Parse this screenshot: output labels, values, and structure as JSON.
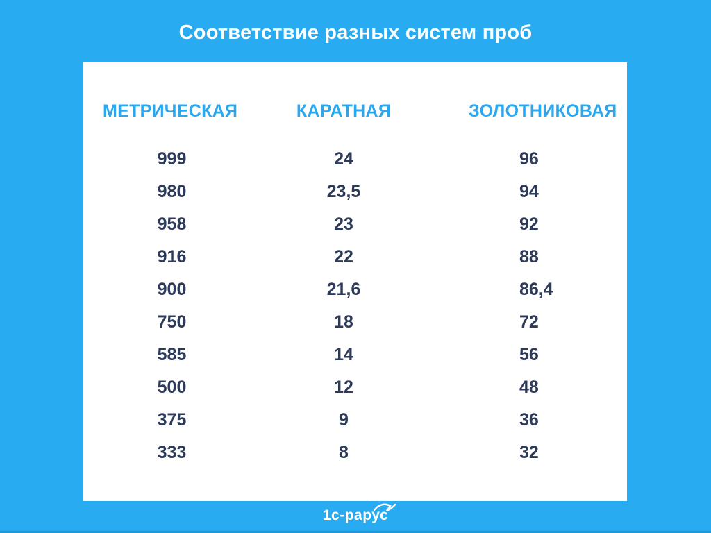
{
  "page": {
    "title": "Соответствие разных систем проб",
    "background_color": "#29ABF1",
    "card_color": "#FFFFFF",
    "title_color": "#FFFFFF",
    "header_text_color": "#2BA7EF",
    "value_text_color": "#2D3A59"
  },
  "chart_data": {
    "type": "table",
    "title": "Соответствие разных систем проб",
    "columns": [
      "МЕТРИЧЕСКАЯ",
      "КАРАТНАЯ",
      "ЗОЛОТНИКОВАЯ"
    ],
    "rows": [
      [
        "999",
        "24",
        "96"
      ],
      [
        "980",
        "23,5",
        "94"
      ],
      [
        "958",
        "23",
        "92"
      ],
      [
        "916",
        "22",
        "88"
      ],
      [
        "900",
        "21,6",
        "86,4"
      ],
      [
        "750",
        "18",
        "72"
      ],
      [
        "585",
        "14",
        "56"
      ],
      [
        "500",
        "12",
        "48"
      ],
      [
        "375",
        "9",
        "36"
      ],
      [
        "333",
        "8",
        "32"
      ]
    ]
  },
  "footer": {
    "logo_text": "1с-рарус"
  }
}
